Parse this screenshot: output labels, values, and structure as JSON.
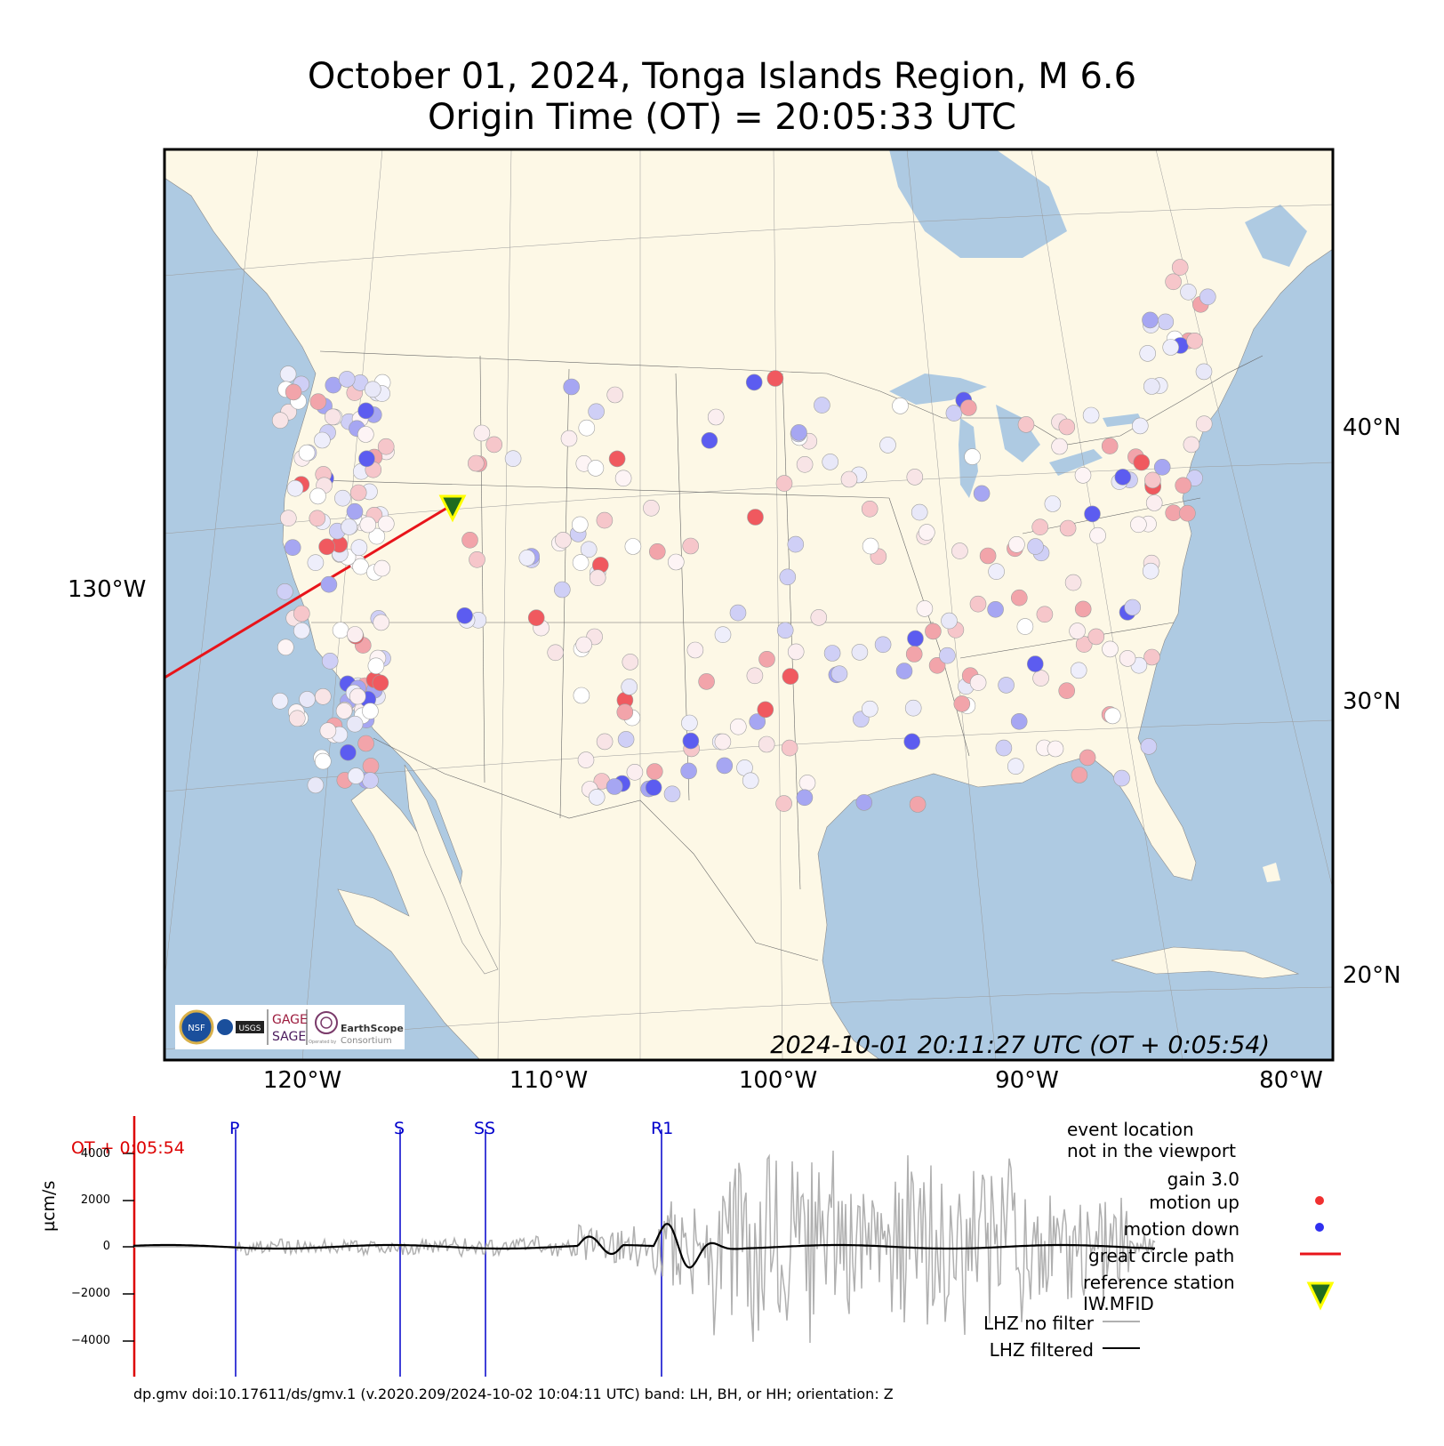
{
  "title": {
    "line1": "October 01, 2024, Tonga Islands Region, M 6.6",
    "line2": "Origin Time (OT) = 20:05:33 UTC"
  },
  "map": {
    "lat_labels": [
      "40°N",
      "30°N",
      "20°N"
    ],
    "lon_labels": [
      "120°W",
      "110°W",
      "100°W",
      "90°W",
      "80°W"
    ],
    "lon_left_label": "130°W",
    "timestamp": "2024-10-01 20:11:27 UTC (OT + 0:05:54)",
    "colors": {
      "ocean": "#aecae2",
      "land": "#fdf8e6",
      "great_circle": "#e8141a",
      "station_marker": "#1f6b1f",
      "station_marker_edge": "#ffff00",
      "motion_up": "#f0595f",
      "motion_down": "#5c5cf0"
    },
    "reference_station": "IW.MFID",
    "logo": {
      "gage": "GAGE",
      "sage": "SAGE",
      "earthscope": "EarthScope",
      "consortium": "Consortium",
      "operated_by": "Operated by",
      "usgs": "USGS",
      "nsf": "NSF"
    }
  },
  "seismogram": {
    "ot_label": "OT + 0:05:54",
    "phases": [
      "P",
      "S",
      "SS",
      "R1"
    ],
    "ylabel": "µcm/s",
    "yticks": [
      "4000",
      "2000",
      "0",
      "−2000",
      "−4000"
    ],
    "legend": {
      "event_line1": "event location",
      "event_line2": "not in the viewport",
      "gain": "gain  3.0",
      "motion_up": "motion up",
      "motion_down": "motion down",
      "great_circle": "great circle path",
      "reference_station_line1": "reference station",
      "reference_station_line2": "IW.MFID",
      "no_filter": "LHZ no filter",
      "filtered": "LHZ filtered"
    },
    "footer": "dp.gmv doi:10.17611/ds/gmv.1 (v.2020.209/2024-10-02 10:04:11 UTC) band: LH, BH, or HH; orientation: Z"
  }
}
